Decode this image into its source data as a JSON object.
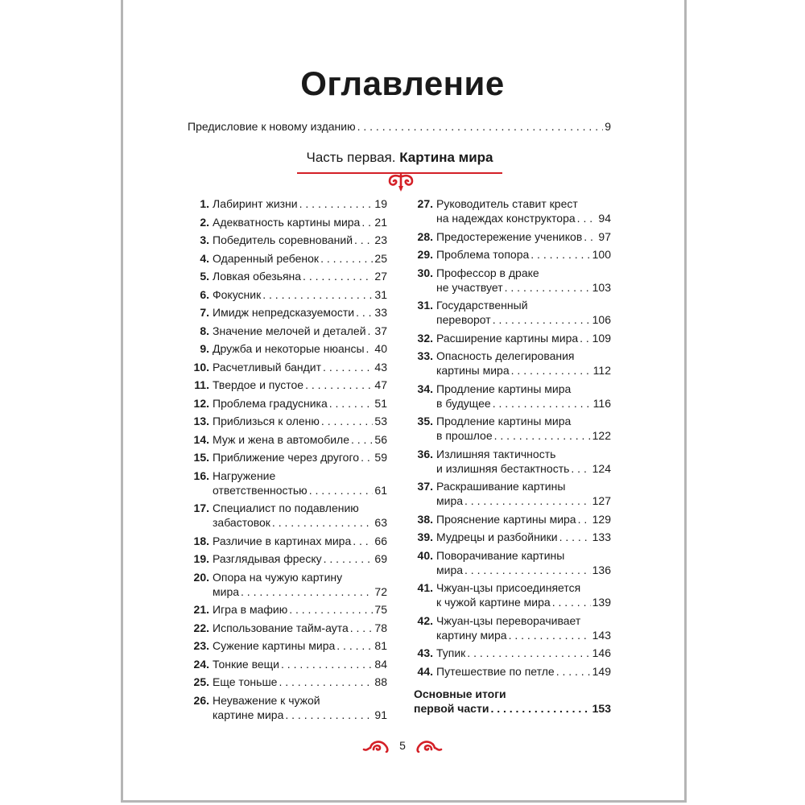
{
  "title": "Оглавление",
  "preface": {
    "label": "Предисловие к новому изданию",
    "page": "9"
  },
  "part": {
    "prefix": "Часть первая.",
    "name": "Картина мира"
  },
  "accent_color": "#d42027",
  "left_entries": [
    {
      "num": "1.",
      "lines": [
        "Лабиринт жизни"
      ],
      "page": "19"
    },
    {
      "num": "2.",
      "lines": [
        "Адекватность картины мира"
      ],
      "page": "21"
    },
    {
      "num": "3.",
      "lines": [
        "Победитель соревнований"
      ],
      "page": "23"
    },
    {
      "num": "4.",
      "lines": [
        "Одаренный ребенок"
      ],
      "page": "25"
    },
    {
      "num": "5.",
      "lines": [
        "Ловкая обезьяна"
      ],
      "page": "27"
    },
    {
      "num": "6.",
      "lines": [
        "Фокусник"
      ],
      "page": "31"
    },
    {
      "num": "7.",
      "lines": [
        "Имидж непредсказуемости"
      ],
      "page": "33"
    },
    {
      "num": "8.",
      "lines": [
        "Значение мелочей и деталей"
      ],
      "page": "37"
    },
    {
      "num": "9.",
      "lines": [
        "Дружба и некоторые нюансы"
      ],
      "page": "40"
    },
    {
      "num": "10.",
      "lines": [
        "Расчетливый бандит"
      ],
      "page": "43"
    },
    {
      "num": "11.",
      "lines": [
        "Твердое и пустое"
      ],
      "page": "47"
    },
    {
      "num": "12.",
      "lines": [
        "Проблема градусника"
      ],
      "page": "51"
    },
    {
      "num": "13.",
      "lines": [
        "Приблизься к оленю"
      ],
      "page": "53"
    },
    {
      "num": "14.",
      "lines": [
        "Муж и жена в автомобиле"
      ],
      "page": "56"
    },
    {
      "num": "15.",
      "lines": [
        "Приближение через другого"
      ],
      "page": "59"
    },
    {
      "num": "16.",
      "lines": [
        "Нагружение",
        "ответственностью"
      ],
      "page": "61"
    },
    {
      "num": "17.",
      "lines": [
        "Специалист по подавлению",
        "забастовок"
      ],
      "page": "63"
    },
    {
      "num": "18.",
      "lines": [
        "Различие в картинах мира"
      ],
      "page": "66"
    },
    {
      "num": "19.",
      "lines": [
        "Разглядывая фреску"
      ],
      "page": "69"
    },
    {
      "num": "20.",
      "lines": [
        "Опора на чужую картину",
        "мира"
      ],
      "page": "72"
    },
    {
      "num": "21.",
      "lines": [
        "Игра в мафию"
      ],
      "page": "75"
    },
    {
      "num": "22.",
      "lines": [
        "Использование тайм-аута"
      ],
      "page": "78"
    },
    {
      "num": "23.",
      "lines": [
        "Сужение картины мира"
      ],
      "page": "81"
    },
    {
      "num": "24.",
      "lines": [
        "Тонкие вещи"
      ],
      "page": "84"
    },
    {
      "num": "25.",
      "lines": [
        "Еще тоньше"
      ],
      "page": "88"
    },
    {
      "num": "26.",
      "lines": [
        "Неуважение к чужой",
        "картине мира"
      ],
      "page": "91"
    }
  ],
  "right_entries": [
    {
      "num": "27.",
      "lines": [
        "Руководитель ставит крест",
        "на надеждах конструктора"
      ],
      "page": "94"
    },
    {
      "num": "28.",
      "lines": [
        "Предостережение учеников"
      ],
      "page": "97"
    },
    {
      "num": "29.",
      "lines": [
        "Проблема топора"
      ],
      "page": "100"
    },
    {
      "num": "30.",
      "lines": [
        "Профессор в драке",
        "не участвует"
      ],
      "page": "103"
    },
    {
      "num": "31.",
      "lines": [
        "Государственный",
        "переворот"
      ],
      "page": "106"
    },
    {
      "num": "32.",
      "lines": [
        "Расширение картины мира"
      ],
      "page": "109"
    },
    {
      "num": "33.",
      "lines": [
        "Опасность делегирования",
        "картины мира"
      ],
      "page": "112"
    },
    {
      "num": "34.",
      "lines": [
        "Продление картины мира",
        "в будущее"
      ],
      "page": "116"
    },
    {
      "num": "35.",
      "lines": [
        "Продление картины мира",
        "в прошлое"
      ],
      "page": "122"
    },
    {
      "num": "36.",
      "lines": [
        "Излишняя тактичность",
        "и излишняя бестактность"
      ],
      "page": "124"
    },
    {
      "num": "37.",
      "lines": [
        "Раскрашивание картины",
        "мира"
      ],
      "page": "127"
    },
    {
      "num": "38.",
      "lines": [
        "Прояснение картины мира"
      ],
      "page": "129"
    },
    {
      "num": "39.",
      "lines": [
        "Мудрецы и разбойники"
      ],
      "page": "133"
    },
    {
      "num": "40.",
      "lines": [
        "Поворачивание картины",
        "мира"
      ],
      "page": "136"
    },
    {
      "num": "41.",
      "lines": [
        "Чжуан-цзы присоединяется",
        "к чужой картине мира"
      ],
      "page": "139"
    },
    {
      "num": "42.",
      "lines": [
        "Чжуан-цзы переворачивает",
        "картину мира"
      ],
      "page": "143"
    },
    {
      "num": "43.",
      "lines": [
        "Тупик"
      ],
      "page": "146"
    },
    {
      "num": "44.",
      "lines": [
        "Путешествие по петле"
      ],
      "page": "149"
    }
  ],
  "summary": {
    "lines": [
      "Основные итоги",
      "первой части"
    ],
    "page": "153"
  },
  "footer": {
    "page_number": "5"
  }
}
